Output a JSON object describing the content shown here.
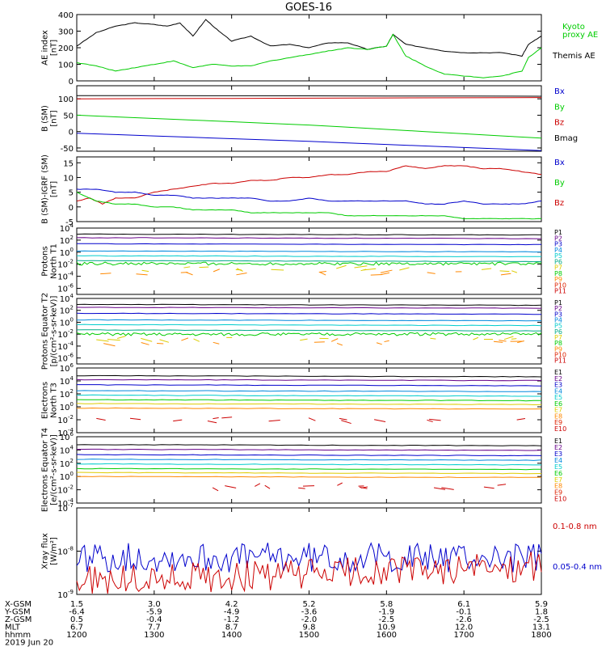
{
  "title": "GOES-16",
  "x_axis": {
    "ticks": [
      "1200",
      "1300",
      "1400",
      "1500",
      "1600",
      "1700",
      "1800"
    ],
    "x_range": [
      1200,
      1800
    ],
    "rows": [
      {
        "label": "X-GSM",
        "values": [
          "1.5",
          "3.0",
          "4.2",
          "5.2",
          "5.8",
          "6.1",
          "5.9"
        ]
      },
      {
        "label": "Y-GSM",
        "values": [
          "-6.4",
          "-5.9",
          "-4.9",
          "-3.6",
          "-1.9",
          "-0.1",
          "1.8"
        ]
      },
      {
        "label": "Z-GSM",
        "values": [
          "0.5",
          "-0.4",
          "-1.2",
          "-2.0",
          "-2.5",
          "-2.6",
          "-2.5"
        ]
      },
      {
        "label": "MLT",
        "values": [
          "6.7",
          "7.7",
          "8.7",
          "9.8",
          "10.9",
          "12.0",
          "13.1"
        ]
      },
      {
        "label": "hhmm",
        "values": [
          "1200",
          "1300",
          "1400",
          "1500",
          "1600",
          "1700",
          "1800"
        ]
      }
    ],
    "date": "2019 Jun 20"
  },
  "chart_data": [
    {
      "type": "line",
      "ylabel": "AE index [nT]",
      "ylim": [
        0,
        400
      ],
      "yticks": [
        "0",
        "100",
        "200",
        "300",
        "400"
      ],
      "legend": [
        {
          "name": "Kyoto proxy AE",
          "color": "#00cc00"
        },
        {
          "name": "Themis AE",
          "color": "#000000"
        }
      ],
      "series": [
        {
          "name": "Themis AE",
          "color": "#000000",
          "x": [
            1200,
            1215,
            1230,
            1245,
            1300,
            1310,
            1320,
            1330,
            1340,
            1350,
            1400,
            1415,
            1430,
            1445,
            1500,
            1515,
            1530,
            1545,
            1600,
            1605,
            1615,
            1630,
            1645,
            1700,
            1715,
            1730,
            1745,
            1750,
            1800
          ],
          "y": [
            210,
            290,
            330,
            350,
            340,
            330,
            350,
            270,
            370,
            300,
            240,
            270,
            210,
            220,
            200,
            230,
            230,
            190,
            210,
            280,
            220,
            200,
            180,
            170,
            170,
            170,
            150,
            220,
            270
          ]
        },
        {
          "name": "Kyoto proxy AE",
          "color": "#00cc00",
          "x": [
            1200,
            1215,
            1230,
            1245,
            1300,
            1315,
            1330,
            1345,
            1400,
            1415,
            1430,
            1445,
            1500,
            1515,
            1530,
            1545,
            1600,
            1605,
            1615,
            1630,
            1645,
            1700,
            1715,
            1730,
            1745,
            1750,
            1800
          ],
          "y": [
            110,
            90,
            60,
            80,
            100,
            120,
            80,
            100,
            90,
            90,
            120,
            140,
            160,
            180,
            200,
            190,
            210,
            280,
            150,
            90,
            40,
            30,
            20,
            30,
            60,
            140,
            200
          ]
        }
      ]
    },
    {
      "type": "line",
      "ylabel": "B (SM) [nT]",
      "ylim": [
        -60,
        140
      ],
      "yticks": [
        "-50",
        "0",
        "50",
        "100"
      ],
      "legend": [
        {
          "name": "Bx",
          "color": "#0000cc"
        },
        {
          "name": "By",
          "color": "#00cc00"
        },
        {
          "name": "Bz",
          "color": "#cc0000"
        },
        {
          "name": "Bmag",
          "color": "#000000"
        }
      ],
      "series": [
        {
          "name": "Bmag",
          "color": "#000000",
          "x": [
            1200,
            1800
          ],
          "y": [
            110,
            108
          ]
        },
        {
          "name": "Bz",
          "color": "#cc0000",
          "x": [
            1200,
            1800
          ],
          "y": [
            100,
            104
          ]
        },
        {
          "name": "By",
          "color": "#00cc00",
          "x": [
            1200,
            1500,
            1800
          ],
          "y": [
            50,
            20,
            -20
          ]
        },
        {
          "name": "Bx",
          "color": "#0000cc",
          "x": [
            1200,
            1500,
            1800
          ],
          "y": [
            -5,
            -30,
            -58
          ]
        }
      ]
    },
    {
      "type": "line",
      "ylabel": "B (SM)-IGRF (SM) [nT]",
      "ylim": [
        -5,
        17
      ],
      "yticks": [
        "-5",
        "0",
        "5",
        "10",
        "15"
      ],
      "legend": [
        {
          "name": "Bx",
          "color": "#0000cc"
        },
        {
          "name": "By",
          "color": "#00cc00"
        },
        {
          "name": "Bz",
          "color": "#cc0000"
        }
      ],
      "series": [
        {
          "name": "Bz",
          "color": "#cc0000",
          "x": [
            1200,
            1210,
            1220,
            1230,
            1245,
            1300,
            1315,
            1330,
            1345,
            1400,
            1415,
            1430,
            1445,
            1500,
            1515,
            1530,
            1545,
            1600,
            1615,
            1630,
            1645,
            1700,
            1715,
            1730,
            1745,
            1800
          ],
          "y": [
            2,
            3,
            1,
            3,
            3,
            5,
            6,
            7,
            8,
            8,
            9,
            9,
            10,
            10,
            11,
            11,
            12,
            12,
            14,
            13,
            14,
            14,
            13,
            13,
            12,
            11
          ]
        },
        {
          "name": "Bx",
          "color": "#0000cc",
          "x": [
            1200,
            1215,
            1230,
            1245,
            1300,
            1315,
            1330,
            1345,
            1400,
            1415,
            1430,
            1445,
            1500,
            1515,
            1530,
            1545,
            1600,
            1615,
            1630,
            1645,
            1700,
            1715,
            1730,
            1745,
            1800
          ],
          "y": [
            6,
            6,
            5,
            5,
            4,
            4,
            3,
            3,
            3,
            3,
            2,
            2,
            3,
            2,
            2,
            2,
            2,
            2,
            1,
            1,
            2,
            1,
            1,
            1,
            2
          ]
        },
        {
          "name": "By",
          "color": "#00cc00",
          "x": [
            1200,
            1215,
            1230,
            1245,
            1300,
            1315,
            1330,
            1345,
            1400,
            1415,
            1430,
            1445,
            1500,
            1515,
            1530,
            1545,
            1600,
            1615,
            1630,
            1645,
            1700,
            1715,
            1730,
            1745,
            1800
          ],
          "y": [
            5,
            2,
            1,
            1,
            0,
            0,
            -1,
            -1,
            -1,
            -2,
            -2,
            -2,
            -2,
            -2,
            -3,
            -3,
            -3,
            -3,
            -3,
            -3,
            -4,
            -4,
            -4,
            -4,
            -4
          ]
        }
      ]
    },
    {
      "type": "line",
      "log": true,
      "ylabel": "Protons North T1",
      "ylim_exp": [
        -7,
        4
      ],
      "yticks_exp": [
        -6,
        -4,
        -2,
        0,
        2,
        4
      ],
      "legend": [
        {
          "name": "P1",
          "color": "#000000"
        },
        {
          "name": "P2",
          "color": "#660088"
        },
        {
          "name": "P3",
          "color": "#0000cc"
        },
        {
          "name": "P4",
          "color": "#0088dd"
        },
        {
          "name": "P5",
          "color": "#00cccc"
        },
        {
          "name": "P6",
          "color": "#00aa88"
        },
        {
          "name": "P7",
          "color": "#ddcc00"
        },
        {
          "name": "P8",
          "color": "#00cc00"
        },
        {
          "name": "P9",
          "color": "#ff8800"
        },
        {
          "name": "P10",
          "color": "#dd2200"
        },
        {
          "name": "P11",
          "color": "#cc0000"
        }
      ],
      "series": [
        {
          "name": "P1",
          "color": "#000000",
          "level": 3.0
        },
        {
          "name": "P2",
          "color": "#660088",
          "level": 2.4
        },
        {
          "name": "P3",
          "color": "#0000cc",
          "level": 1.4
        },
        {
          "name": "P4",
          "color": "#0088dd",
          "level": 0.2
        },
        {
          "name": "P5",
          "color": "#00cccc",
          "level": -0.6
        },
        {
          "name": "P6",
          "color": "#00aa88",
          "level": -1.4
        },
        {
          "name": "P8",
          "color": "#00cc00",
          "level": -1.9,
          "noisy": true
        },
        {
          "name": "P7",
          "color": "#ddcc00",
          "level": -2.8,
          "sparse": true
        },
        {
          "name": "P9",
          "color": "#ff8800",
          "level": -3.5,
          "sparse": true
        }
      ]
    },
    {
      "type": "line",
      "log": true,
      "ylabel": "Protons Equator T2 [p/(cm²-s-sr-keV)]",
      "ylim_exp": [
        -7,
        4
      ],
      "yticks_exp": [
        -6,
        -4,
        -2,
        0,
        2,
        4
      ],
      "legend": [
        {
          "name": "P1",
          "color": "#000000"
        },
        {
          "name": "P2",
          "color": "#660088"
        },
        {
          "name": "P3",
          "color": "#0000cc"
        },
        {
          "name": "P4",
          "color": "#0088dd"
        },
        {
          "name": "P5",
          "color": "#00cccc"
        },
        {
          "name": "P6",
          "color": "#00aa88"
        },
        {
          "name": "P7",
          "color": "#ddcc00"
        },
        {
          "name": "P8",
          "color": "#00cc00"
        },
        {
          "name": "P9",
          "color": "#ff8800"
        },
        {
          "name": "P10",
          "color": "#dd2200"
        },
        {
          "name": "P11",
          "color": "#cc0000"
        }
      ],
      "series": [
        {
          "name": "P1",
          "color": "#000000",
          "level": 3.0
        },
        {
          "name": "P2",
          "color": "#660088",
          "level": 2.5
        },
        {
          "name": "P3",
          "color": "#0000cc",
          "level": 1.5
        },
        {
          "name": "P4",
          "color": "#0088dd",
          "level": 0.4
        },
        {
          "name": "P5",
          "color": "#00cccc",
          "level": -0.4
        },
        {
          "name": "P6",
          "color": "#00aa88",
          "level": -1.3
        },
        {
          "name": "P8",
          "color": "#00cc00",
          "level": -2.0,
          "noisy": true
        },
        {
          "name": "P7",
          "color": "#ddcc00",
          "level": -2.8,
          "sparse": true
        },
        {
          "name": "P9",
          "color": "#ff8800",
          "level": -3.3,
          "sparse": true
        }
      ]
    },
    {
      "type": "line",
      "log": true,
      "ylabel": "Electrons North T3",
      "ylim_exp": [
        -4,
        6
      ],
      "yticks_exp": [
        -4,
        -2,
        0,
        2,
        4,
        6
      ],
      "legend": [
        {
          "name": "E1",
          "color": "#000000"
        },
        {
          "name": "E2",
          "color": "#660088"
        },
        {
          "name": "E3",
          "color": "#0000cc"
        },
        {
          "name": "E4",
          "color": "#0088dd"
        },
        {
          "name": "E5",
          "color": "#00cccc"
        },
        {
          "name": "E6",
          "color": "#00cc00"
        },
        {
          "name": "E7",
          "color": "#ddcc00"
        },
        {
          "name": "E8",
          "color": "#ff8800"
        },
        {
          "name": "E9",
          "color": "#dd2200"
        },
        {
          "name": "E10",
          "color": "#cc0000"
        }
      ],
      "series": [
        {
          "name": "E1",
          "color": "#000000",
          "level": 4.8
        },
        {
          "name": "E2",
          "color": "#660088",
          "level": 4.2
        },
        {
          "name": "E3",
          "color": "#0000cc",
          "level": 3.4
        },
        {
          "name": "E4",
          "color": "#0088dd",
          "level": 2.5
        },
        {
          "name": "E5",
          "color": "#00cccc",
          "level": 1.8
        },
        {
          "name": "E6",
          "color": "#00cc00",
          "level": 1.1
        },
        {
          "name": "E7",
          "color": "#ddcc00",
          "level": 0.5
        },
        {
          "name": "E8",
          "color": "#ff8800",
          "level": -0.2
        },
        {
          "name": "E9",
          "color": "#cc0000",
          "level": -2.0,
          "sparse": true
        }
      ]
    },
    {
      "type": "line",
      "log": true,
      "ylabel": "Electrons Equator T4 [e/(cm²-s-sr-keV)]",
      "ylim_exp": [
        -4,
        6
      ],
      "yticks_exp": [
        -4,
        -2,
        0,
        2,
        4,
        6
      ],
      "legend": [
        {
          "name": "E1",
          "color": "#000000"
        },
        {
          "name": "E2",
          "color": "#660088"
        },
        {
          "name": "E3",
          "color": "#0000cc"
        },
        {
          "name": "E4",
          "color": "#0088dd"
        },
        {
          "name": "E5",
          "color": "#00cccc"
        },
        {
          "name": "E6",
          "color": "#00cc00"
        },
        {
          "name": "E7",
          "color": "#ddcc00"
        },
        {
          "name": "E8",
          "color": "#ff8800"
        },
        {
          "name": "E9",
          "color": "#dd2200"
        },
        {
          "name": "E10",
          "color": "#cc0000"
        }
      ],
      "series": [
        {
          "name": "E1",
          "color": "#000000",
          "level": 4.8
        },
        {
          "name": "E2",
          "color": "#660088",
          "level": 4.1
        },
        {
          "name": "E3",
          "color": "#0000cc",
          "level": 3.3
        },
        {
          "name": "E4",
          "color": "#0088dd",
          "level": 2.6
        },
        {
          "name": "E5",
          "color": "#00cccc",
          "level": 1.9
        },
        {
          "name": "E6",
          "color": "#00cc00",
          "level": 1.2
        },
        {
          "name": "E7",
          "color": "#ddcc00",
          "level": 0.6
        },
        {
          "name": "E8",
          "color": "#ff8800",
          "level": 0.0
        },
        {
          "name": "E9",
          "color": "#cc0000",
          "level": -1.5,
          "sparse": true
        }
      ]
    },
    {
      "type": "line",
      "log": true,
      "ylabel": "Xray flux [W/m²]",
      "ylim_exp": [
        -9,
        -7
      ],
      "yticks_exp": [
        -9,
        -8,
        -7
      ],
      "legend": [
        {
          "name": "0.1-0.8 nm",
          "color": "#cc0000"
        },
        {
          "name": "0.05-0.4 nm",
          "color": "#0000cc"
        }
      ],
      "series": [
        {
          "name": "0.05-0.4 nm",
          "color": "#0000cc",
          "level": -8.15,
          "noisy": true
        },
        {
          "name": "0.1-0.8 nm",
          "color": "#cc0000",
          "level": -8.7,
          "noisy": true,
          "rising": true
        }
      ]
    }
  ]
}
